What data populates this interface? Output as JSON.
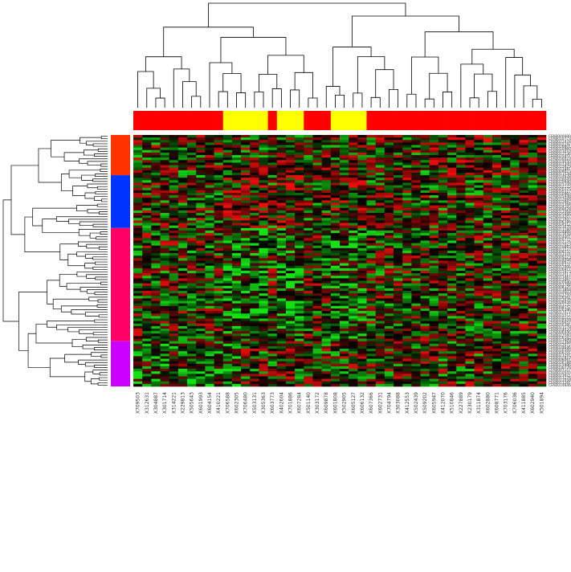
{
  "chart_data": {
    "type": "heatmap",
    "title": "",
    "xlabel": "",
    "ylabel": "",
    "color_scale": {
      "low": "#18e018",
      "mid": "#000000",
      "high": "#f01010"
    },
    "columns": [
      "X709503",
      "X312631",
      "X304887",
      "X301714",
      "X314221",
      "X229813",
      "X505643",
      "X601993",
      "X604154",
      "X410221",
      "X706588",
      "X602305",
      "X706480",
      "X503131",
      "X305363",
      "X603773",
      "X402604",
      "X701886",
      "X607284",
      "X501140",
      "X303172",
      "X609878",
      "X601808",
      "X502905",
      "X605127",
      "X606132",
      "X607366",
      "X602731",
      "X704794",
      "X303088",
      "X412553",
      "X502439",
      "X509202",
      "X605947",
      "X412070",
      "X510846",
      "X227889",
      "X230179",
      "X311874",
      "X602880",
      "X608771",
      "X703176",
      "X706036",
      "X411885",
      "X602940",
      "X501894"
    ],
    "column_groups": {
      "colors": {
        "A": "#ff0000",
        "B": "#ffff00"
      },
      "sequence": [
        "A",
        "A",
        "A",
        "A",
        "A",
        "A",
        "A",
        "A",
        "A",
        "A",
        "B",
        "B",
        "B",
        "B",
        "B",
        "A",
        "B",
        "B",
        "B",
        "A",
        "A",
        "A",
        "B",
        "B",
        "B",
        "B",
        "A",
        "A",
        "A",
        "A",
        "A",
        "A",
        "A",
        "A",
        "A",
        "A",
        "A",
        "A",
        "A",
        "A",
        "A",
        "A",
        "A",
        "A",
        "A",
        "A"
      ]
    },
    "row_groups": [
      {
        "color": "#ff3300",
        "count": 16
      },
      {
        "color": "#0033ff",
        "count": 21
      },
      {
        "color": "#ff0066",
        "count": 45
      },
      {
        "color": "#cc00ff",
        "count": 18
      }
    ],
    "rows": [
      "CFAB000000",
      "CFAB010773",
      "CFAB021474",
      "CFAB025192",
      "CFAB026601",
      "CFAB010960",
      "CFAB013010",
      "CFAB011536",
      "CFAB025451",
      "CFAB016023",
      "CFAB019050",
      "CFAB023300",
      "CFAB015829",
      "CFAB013481",
      "CFAB009023",
      "CFAB011538",
      "CFAB014628",
      "CFAB026049",
      "CFAB020640",
      "CFAB025108",
      "CFAB012133",
      "CFAB020225",
      "CFAB020327",
      "CFAB010960",
      "CFAB015948",
      "CFAB012668",
      "CFAB022662",
      "CFAB017364",
      "CFAB024193",
      "CFAB009028",
      "CFAB011064",
      "CFAB025466",
      "CFAB013207",
      "CFAB021997",
      "CFAB006346",
      "CFAB024512",
      "CFAB023070",
      "CFAB011180",
      "CFAB024866",
      "CFAB023658",
      "CFAB024401",
      "CFAB016777",
      "CFAB012176",
      "CFAB017023",
      "CFAB019893",
      "CFAB011127",
      "CFAB009232",
      "CFAB013316",
      "CFAB009223",
      "CFAB024004",
      "CFAB016677",
      "CFAB020337",
      "CFAB012006",
      "CFAB016911",
      "CFAB011973",
      "CFAB012017",
      "CFAB013467",
      "CFAB023467",
      "CFAB020040",
      "CFAB011788",
      "CFAB008325",
      "CFAB013868",
      "CFAB014603",
      "CFAB023750",
      "CFAB016561",
      "CFAB013076",
      "CFAB028436",
      "CFAB011132",
      "CFAB008152",
      "CFAB020396",
      "CFAB017472",
      "CFAB015512",
      "CFAB010122",
      "CFAB018558",
      "CFAB016057",
      "CFAB016395",
      "CFAB011179",
      "CFAB014020",
      "CFAB006446",
      "CFAB023560",
      "CFAB016162",
      "CFAB017489",
      "CFAB012364",
      "CFAB012072",
      "CFAB024646",
      "CFAB016566",
      "CFAB006291",
      "CFAB023791",
      "CFAB012810",
      "CFAB006061",
      "CFAB026188",
      "CFAB023996",
      "CFAB030776",
      "CFAB007157",
      "CFAB010555",
      "CFAB023021",
      "CFAB011276",
      "CFAB011058",
      "CFAB013281",
      "CFAB014846"
    ]
  }
}
